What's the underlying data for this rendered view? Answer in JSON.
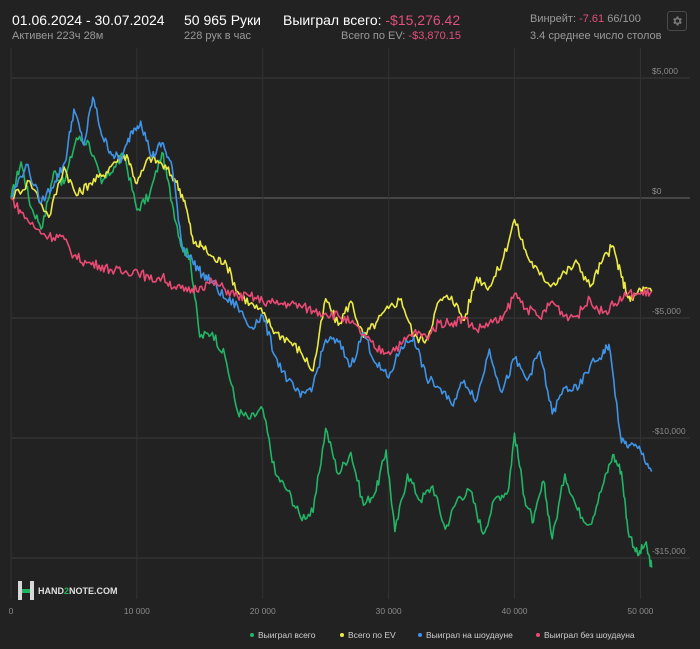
{
  "header": {
    "date_range": "01.06.2024 - 30.07.2024",
    "active_time": "Активен 223ч 28м",
    "hands": "50 965 Руки",
    "hands_per_hour": "228 рук в час",
    "won_total_label": "Выиграл всего:",
    "won_total_value": "-$15,276.42",
    "ev_label": "Всего по EV:",
    "ev_value": "-$3,870.15",
    "winrate_label": "Винрейт:",
    "winrate_value": "-7.61",
    "winrate_unit": "66/100",
    "tables": "3.4 среднее число столов",
    "settings_icon": "gear-icon"
  },
  "logo": {
    "brand_prefix": "HAND",
    "brand_num": "2",
    "brand_suffix": "NOTE.COM",
    "icon": "hand2note-logo-icon"
  },
  "chart_data": {
    "type": "line",
    "xlabel": "",
    "ylabel": "",
    "xlim": [
      0,
      51000
    ],
    "ylim": [
      -15800,
      5500
    ],
    "x_ticks": [
      0,
      10000,
      20000,
      30000,
      40000,
      50000
    ],
    "x_tick_labels": [
      "0",
      "10 000",
      "20 000",
      "30 000",
      "40 000",
      "50 000"
    ],
    "y_ticks": [
      5000,
      0,
      -5000,
      -10000,
      -15000
    ],
    "y_tick_labels": [
      "$5,000",
      "$0",
      "-$5,000",
      "-$10,000",
      "-$15,000"
    ],
    "legend_position": "bottom-right",
    "series": [
      {
        "name": "Выиграл всего",
        "color": "#22b566",
        "x": [
          0,
          800,
          1600,
          2500,
          3400,
          4200,
          5200,
          6200,
          7200,
          8200,
          9000,
          10000,
          11000,
          12000,
          12800,
          13600,
          14200,
          15000,
          16000,
          17000,
          18000,
          19000,
          20000,
          21000,
          22000,
          23000,
          24000,
          25000,
          26000,
          27000,
          28000,
          29000,
          29800,
          30500,
          31500,
          32500,
          33500,
          34500,
          35500,
          36500,
          37500,
          38500,
          39500,
          40000,
          40800,
          41500,
          42300,
          43000,
          44000,
          45000,
          46000,
          47000,
          47800,
          48500,
          49000,
          49800,
          50400,
          50900
        ],
        "y": [
          0,
          1500,
          -400,
          -1200,
          1100,
          600,
          2500,
          2300,
          600,
          1300,
          1800,
          -500,
          100,
          1900,
          -200,
          -2100,
          -2400,
          -5800,
          -5600,
          -6600,
          -8900,
          -9200,
          -8800,
          -11500,
          -12200,
          -13300,
          -13100,
          -9600,
          -11500,
          -10600,
          -12800,
          -12200,
          -10500,
          -13900,
          -11500,
          -12600,
          -12000,
          -13800,
          -12500,
          -12200,
          -14000,
          -12500,
          -12200,
          -9800,
          -12500,
          -13500,
          -11800,
          -14200,
          -11500,
          -13000,
          -13600,
          -12000,
          -10700,
          -11400,
          -13800,
          -14900,
          -14400,
          -15400
        ]
      },
      {
        "name": "Всего по EV",
        "color": "#ecea44",
        "x": [
          0,
          1500,
          3000,
          4200,
          5200,
          6200,
          7200,
          8200,
          9200,
          10000,
          11000,
          12000,
          13000,
          13800,
          14500,
          15200,
          16200,
          17000,
          18000,
          19000,
          20000,
          21000,
          22000,
          23000,
          24000,
          25000,
          26000,
          27000,
          28000,
          29000,
          30000,
          31000,
          32000,
          33000,
          34000,
          35000,
          36000,
          37000,
          38000,
          39000,
          40000,
          41000,
          42000,
          43000,
          44000,
          45000,
          46000,
          47000,
          47800,
          48500,
          49200,
          50000,
          50900
        ],
        "y": [
          0,
          700,
          -800,
          1300,
          100,
          600,
          900,
          1500,
          1800,
          600,
          1700,
          1400,
          800,
          -100,
          -1900,
          -2000,
          -2600,
          -2600,
          -3900,
          -4400,
          -4800,
          -5600,
          -5900,
          -6400,
          -7200,
          -4200,
          -5300,
          -4300,
          -5800,
          -5200,
          -4600,
          -4200,
          -5800,
          -5900,
          -4300,
          -4100,
          -5100,
          -3300,
          -3700,
          -2700,
          -900,
          -2400,
          -3200,
          -3600,
          -3100,
          -2700,
          -3700,
          -2600,
          -2000,
          -3300,
          -4300,
          -3800,
          -3900
        ]
      },
      {
        "name": "Выиграл на шоудауне",
        "color": "#3f93e6",
        "x": [
          0,
          1200,
          2400,
          3500,
          4300,
          5000,
          5800,
          6500,
          7300,
          8100,
          8800,
          9600,
          10300,
          11200,
          12000,
          12800,
          13600,
          14400,
          15200,
          16000,
          17000,
          18000,
          19000,
          20000,
          21000,
          22000,
          23000,
          24000,
          25000,
          26000,
          27000,
          28000,
          29000,
          30000,
          31000,
          32000,
          33000,
          34000,
          35000,
          36000,
          37000,
          38000,
          39000,
          40000,
          41000,
          42000,
          43000,
          44000,
          45000,
          46000,
          47000,
          47500,
          48500,
          49200,
          50000,
          50900
        ],
        "y": [
          0,
          1400,
          -200,
          700,
          1500,
          3700,
          2200,
          4200,
          2500,
          1800,
          1600,
          2800,
          3200,
          1700,
          2300,
          1300,
          -2000,
          -2600,
          -3200,
          -3500,
          -4200,
          -4500,
          -5400,
          -4900,
          -6600,
          -7600,
          -8300,
          -7800,
          -5900,
          -6000,
          -7000,
          -5600,
          -6900,
          -7500,
          -6200,
          -5800,
          -7500,
          -7900,
          -8600,
          -7600,
          -8400,
          -6300,
          -8100,
          -6700,
          -7600,
          -6400,
          -9000,
          -7900,
          -8000,
          -7000,
          -6500,
          -6100,
          -10200,
          -10300,
          -10500,
          -11400
        ]
      },
      {
        "name": "Выиграл без шоудауна",
        "color": "#e84a74",
        "x": [
          0,
          800,
          2000,
          3000,
          4000,
          5000,
          6000,
          7000,
          8000,
          9000,
          10000,
          11000,
          12000,
          13000,
          14000,
          15000,
          16000,
          17000,
          18000,
          19000,
          20000,
          21000,
          22000,
          23000,
          24000,
          25000,
          26000,
          27000,
          28000,
          29000,
          30000,
          31000,
          32000,
          33000,
          34000,
          35000,
          36000,
          37000,
          38000,
          39000,
          40000,
          41000,
          42000,
          43000,
          44000,
          45000,
          46000,
          47000,
          48000,
          49000,
          50000,
          50900
        ],
        "y": [
          0,
          -600,
          -1300,
          -1600,
          -1600,
          -2400,
          -2700,
          -2800,
          -3000,
          -3100,
          -3000,
          -3400,
          -3300,
          -3700,
          -3900,
          -3700,
          -3500,
          -3800,
          -4100,
          -4100,
          -4300,
          -4400,
          -4400,
          -4500,
          -4700,
          -4800,
          -4900,
          -5200,
          -5700,
          -6300,
          -6400,
          -6100,
          -5600,
          -5800,
          -5200,
          -5200,
          -5000,
          -5500,
          -5200,
          -5100,
          -4000,
          -4600,
          -5000,
          -4300,
          -4900,
          -4900,
          -4200,
          -4800,
          -4400,
          -4000,
          -4000,
          -3900
        ]
      }
    ]
  }
}
